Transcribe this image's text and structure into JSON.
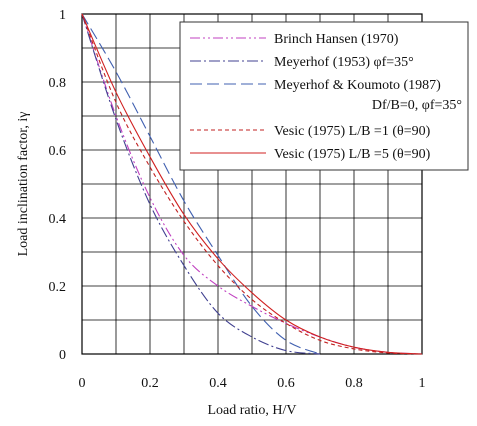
{
  "chart_data": {
    "type": "line",
    "xlabel": "Load ratio, H/V",
    "ylabel": "Load inclination factor, iγ",
    "xlim": [
      0,
      1
    ],
    "ylim": [
      0,
      1
    ],
    "x_ticks": [
      "0",
      "0.2",
      "0.4",
      "0.6",
      "0.8",
      "1"
    ],
    "y_ticks": [
      "0",
      "0.2",
      "0.4",
      "0.6",
      "0.8",
      "1"
    ],
    "x_tick_values": [
      0,
      0.2,
      0.4,
      0.6,
      0.8,
      1
    ],
    "y_tick_values": [
      0,
      0.2,
      0.4,
      0.6,
      0.8,
      1
    ],
    "grid": true,
    "legend_position": "top-right",
    "series": [
      {
        "name": "Brinch Hansen (1970)",
        "color": "#c040c0",
        "dash": "dash-dot-dot",
        "x": [
          0,
          0.1,
          0.2,
          0.3,
          0.4,
          0.5,
          0.6,
          0.7,
          0.8,
          0.9,
          1.0
        ],
        "y": [
          1,
          0.7,
          0.46,
          0.29,
          0.2,
          0.14,
          0.09,
          0.05,
          0.02,
          0.005,
          0
        ]
      },
      {
        "name": "Meyerhof (1953) φf=35°",
        "color": "#404090",
        "dash": "dash-dot",
        "x": [
          0,
          0.1,
          0.2,
          0.3,
          0.4,
          0.5,
          0.6,
          0.7
        ],
        "y": [
          1,
          0.69,
          0.44,
          0.26,
          0.12,
          0.05,
          0.01,
          0
        ]
      },
      {
        "name": "Meyerhof & Koumoto (1987)",
        "name2": "Df/B=0, φf=35°",
        "color": "#4060b0",
        "dash": "long-dash",
        "x": [
          0,
          0.1,
          0.2,
          0.3,
          0.4,
          0.5,
          0.6,
          0.7
        ],
        "y": [
          1,
          0.83,
          0.64,
          0.45,
          0.29,
          0.14,
          0.04,
          0
        ]
      },
      {
        "name": "Vesic (1975) L/B =1 (θ=90)",
        "color": "#c02020",
        "dash": "short-dash",
        "x": [
          0,
          0.1,
          0.2,
          0.3,
          0.4,
          0.5,
          0.6,
          0.7,
          0.8,
          0.9,
          1.0
        ],
        "y": [
          1,
          0.74,
          0.55,
          0.39,
          0.26,
          0.16,
          0.09,
          0.04,
          0.015,
          0.003,
          0
        ]
      },
      {
        "name": "Vesic (1975) L/B =5 (θ=90)",
        "color": "#d02020",
        "dash": "solid",
        "x": [
          0,
          0.1,
          0.2,
          0.3,
          0.4,
          0.5,
          0.6,
          0.7,
          0.8,
          0.9,
          1.0
        ],
        "y": [
          1,
          0.77,
          0.58,
          0.41,
          0.28,
          0.18,
          0.1,
          0.05,
          0.02,
          0.005,
          0
        ]
      }
    ]
  }
}
